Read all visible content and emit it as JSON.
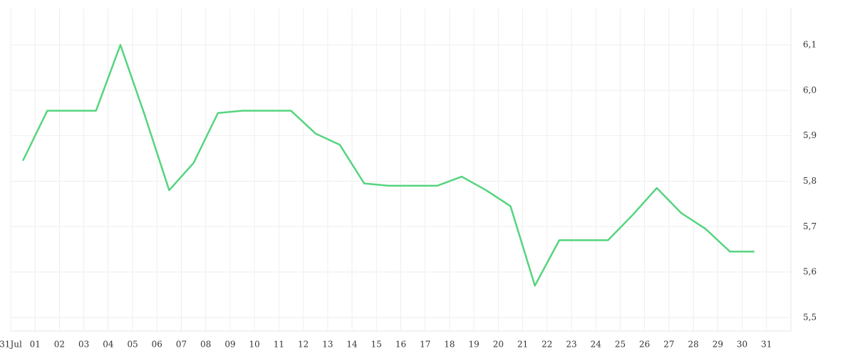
{
  "chart_data": {
    "type": "line",
    "xlim": [
      0,
      32
    ],
    "xticks": [
      {
        "value": 0,
        "label": "31Jul"
      },
      {
        "value": 1,
        "label": "01"
      },
      {
        "value": 2,
        "label": "02"
      },
      {
        "value": 3,
        "label": "03"
      },
      {
        "value": 4,
        "label": "04"
      },
      {
        "value": 5,
        "label": "05"
      },
      {
        "value": 6,
        "label": "06"
      },
      {
        "value": 7,
        "label": "07"
      },
      {
        "value": 8,
        "label": "08"
      },
      {
        "value": 9,
        "label": "09"
      },
      {
        "value": 10,
        "label": "10"
      },
      {
        "value": 11,
        "label": "11"
      },
      {
        "value": 12,
        "label": "12"
      },
      {
        "value": 13,
        "label": "13"
      },
      {
        "value": 14,
        "label": "14"
      },
      {
        "value": 15,
        "label": "15"
      },
      {
        "value": 16,
        "label": "16"
      },
      {
        "value": 17,
        "label": "17"
      },
      {
        "value": 18,
        "label": "18"
      },
      {
        "value": 19,
        "label": "19"
      },
      {
        "value": 20,
        "label": "20"
      },
      {
        "value": 21,
        "label": "21"
      },
      {
        "value": 22,
        "label": "22"
      },
      {
        "value": 23,
        "label": "23"
      },
      {
        "value": 24,
        "label": "24"
      },
      {
        "value": 25,
        "label": "25"
      },
      {
        "value": 26,
        "label": "26"
      },
      {
        "value": 27,
        "label": "27"
      },
      {
        "value": 28,
        "label": "28"
      },
      {
        "value": 29,
        "label": "29"
      },
      {
        "value": 30,
        "label": "30"
      },
      {
        "value": 31,
        "label": "31"
      }
    ],
    "ylim": [
      5.47,
      6.18
    ],
    "yticks": [
      {
        "value": 5.5,
        "label": "5,5"
      },
      {
        "value": 5.6,
        "label": "5,6"
      },
      {
        "value": 5.7,
        "label": "5,7"
      },
      {
        "value": 5.8,
        "label": "5,8"
      },
      {
        "value": 5.9,
        "label": "5,9"
      },
      {
        "value": 6.0,
        "label": "6,0"
      },
      {
        "value": 6.1,
        "label": "6,1"
      }
    ],
    "grid": true,
    "color": "#55d47f",
    "x": [
      0.5,
      1.5,
      2.5,
      3.5,
      4.5,
      5.5,
      6.5,
      7.5,
      8.5,
      9.5,
      10.5,
      11.5,
      12.5,
      13.5,
      14.5,
      15.5,
      16.5,
      17.5,
      18.5,
      19.5,
      20.5,
      21.5,
      22.5,
      23.5,
      24.5,
      25.5,
      26.5,
      27.5,
      28.5,
      29.5,
      30.5
    ],
    "values": [
      5.845,
      5.955,
      5.955,
      5.955,
      6.1,
      5.945,
      5.78,
      5.84,
      5.95,
      5.955,
      5.955,
      5.955,
      5.905,
      5.88,
      5.795,
      5.79,
      5.79,
      5.79,
      5.81,
      5.78,
      5.745,
      5.57,
      5.67,
      5.67,
      5.67,
      5.725,
      5.785,
      5.73,
      5.695,
      5.645,
      5.645
    ]
  }
}
